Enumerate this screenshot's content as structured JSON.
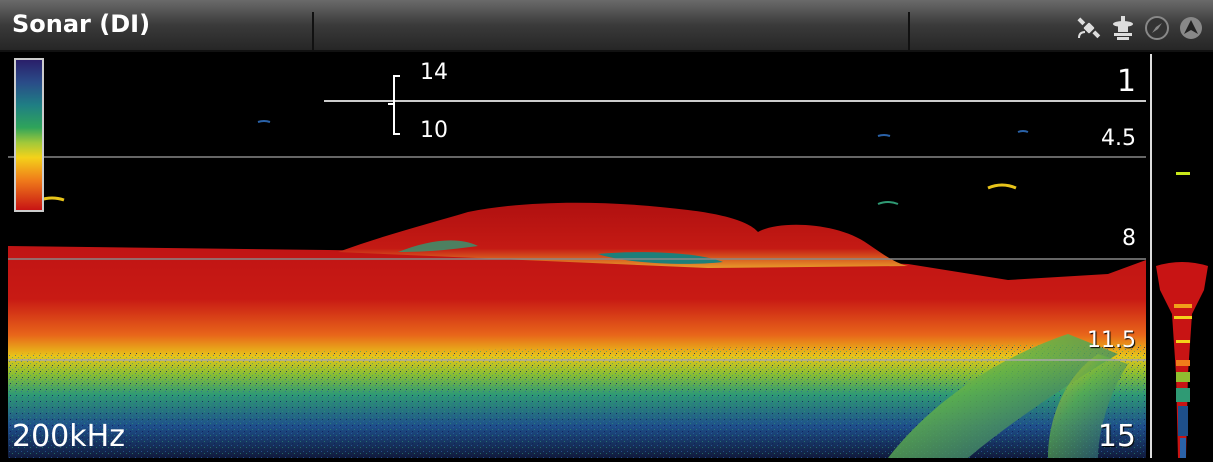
{
  "header": {
    "title": "Sonar (DI)",
    "icons": [
      "gps-satellite-icon",
      "transducer-icon",
      "compass-icon",
      "navigation-arrow-icon"
    ]
  },
  "sonar": {
    "frequency": "200kHz",
    "depth_scale": [
      "1",
      "4.5",
      "8",
      "11.5",
      "15"
    ],
    "fish_id_upper": "14",
    "fish_id_lower": "10",
    "palette_colors": [
      "#2a1f6a",
      "#1f7e84",
      "#2fa45a",
      "#f4d21a",
      "#f07c1a",
      "#c81414"
    ]
  }
}
